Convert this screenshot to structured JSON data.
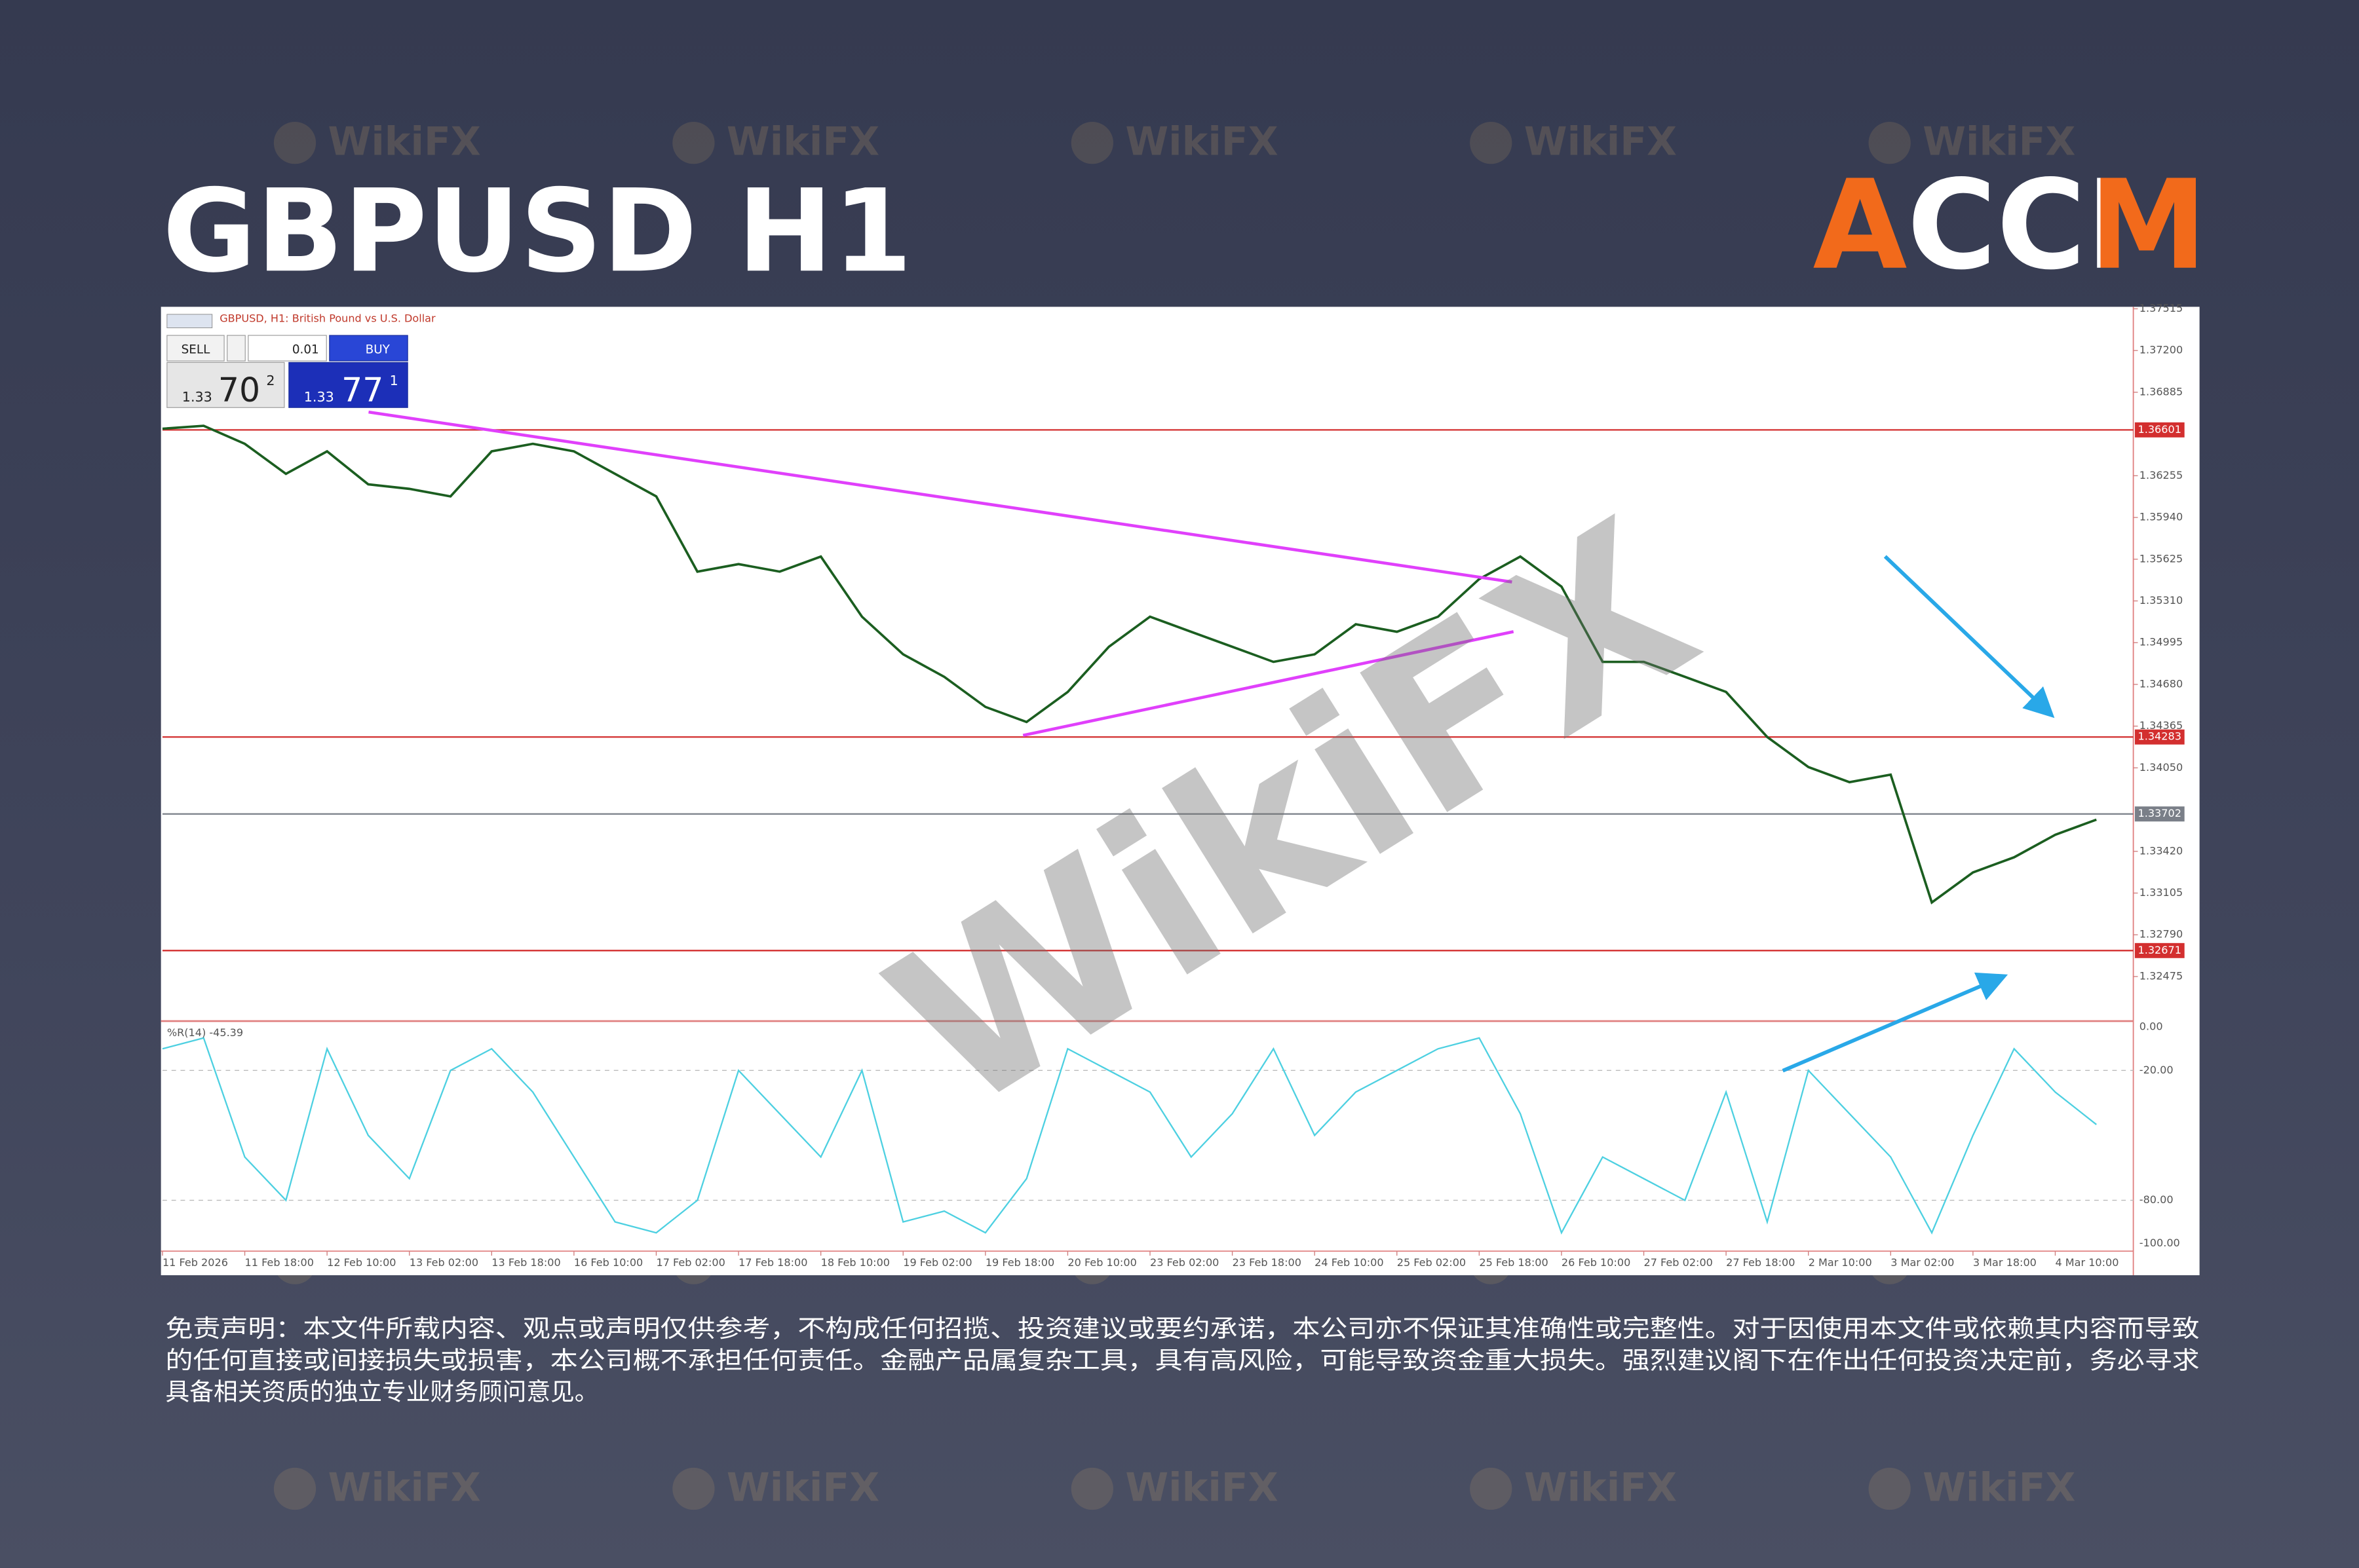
{
  "title": "GBPUSD H1",
  "logo": "ACCM",
  "watermark": "WikiFX",
  "chart_data": {
    "type": "line",
    "header": "GBPUSD, H1: British Pound vs U.S. Dollar",
    "trade_panel": {
      "sell": "SELL",
      "lot": "0.01",
      "buy": "BUY",
      "bid_big": "1.33",
      "bid_main": "70",
      "bid_small": "2",
      "ask_big": "1.33",
      "ask_main": "77",
      "ask_small": "1"
    },
    "time_labels": [
      "11 Feb 2026",
      "11 Feb 18:00",
      "12 Feb 10:00",
      "13 Feb 02:00",
      "13 Feb 18:00",
      "16 Feb 10:00",
      "17 Feb 02:00",
      "17 Feb 18:00",
      "18 Feb 10:00",
      "19 Feb 02:00",
      "19 Feb 18:00",
      "20 Feb 10:00",
      "23 Feb 02:00",
      "23 Feb 18:00",
      "24 Feb 10:00",
      "25 Feb 02:00",
      "25 Feb 18:00",
      "26 Feb 10:00",
      "27 Feb 02:00",
      "27 Feb 18:00",
      "2 Mar 10:00",
      "3 Mar 02:00",
      "3 Mar 18:00",
      "4 Mar 10:00"
    ],
    "ylim": [
      1.3215,
      1.3753
    ],
    "yticks": [
      1.37515,
      {
        "value": 1.372,
        "label": "1.37200"
      },
      1.36885,
      1.36255,
      {
        "value": 1.3594,
        "label": "1.35940"
      },
      1.35625,
      {
        "value": 1.3531,
        "label": "1.35310"
      },
      1.34995,
      {
        "value": 1.3468,
        "label": "1.34680"
      },
      1.34365,
      {
        "value": 1.3405,
        "label": "1.34050"
      },
      {
        "value": 1.3342,
        "label": "1.33420"
      },
      1.33105,
      {
        "value": 1.3279,
        "label": "1.32790"
      },
      1.32475
    ],
    "levels": [
      {
        "value": 1.36601,
        "color": "#d32f2f"
      },
      {
        "value": 1.34283,
        "color": "#d32f2f"
      },
      {
        "value": 1.33702,
        "color": "#7a7f88"
      },
      {
        "value": 1.32671,
        "color": "#d32f2f"
      }
    ],
    "series": [
      {
        "name": "GBPUSD",
        "color": "#1b5e20",
        "values": [
          1.3661,
          1.36632,
          1.36496,
          1.36269,
          1.36439,
          1.3619,
          1.36156,
          1.36099,
          1.36439,
          1.36496,
          1.36439,
          1.36269,
          1.36099,
          1.35531,
          1.35588,
          1.35531,
          1.35645,
          1.35191,
          1.34907,
          1.34737,
          1.3451,
          1.34396,
          1.34623,
          1.34964,
          1.35191,
          1.35077,
          1.34964,
          1.3485,
          1.34907,
          1.35134,
          1.35077,
          1.35191,
          1.35475,
          1.35645,
          1.35418,
          1.3485,
          1.3485,
          1.34737,
          1.34623,
          1.34283,
          1.34056,
          1.33942,
          1.33999,
          1.33034,
          1.33261,
          1.33375,
          1.33545,
          1.33659
        ]
      },
      {
        "name": "%R(14) -45.39",
        "color": "#4dd0e1",
        "axis": "y2",
        "values": [
          -10,
          -5,
          -60,
          -80,
          -10,
          -50,
          -70,
          -20,
          -10,
          -30,
          -60,
          -90,
          -95,
          -80,
          -20,
          -40,
          -60,
          -20,
          -90,
          -85,
          -95,
          -70,
          -10,
          -20,
          -30,
          -60,
          -40,
          -10,
          -50,
          -30,
          -20,
          -10,
          -5,
          -40,
          -95,
          -60,
          -70,
          -80,
          -30,
          -90,
          -20,
          -40,
          -60,
          -95,
          -50,
          -10,
          -30,
          -45
        ]
      }
    ],
    "y2lim": [
      -103.5,
      2.1
    ],
    "y2ticks": [
      {
        "value": 0,
        "label": "0.00"
      },
      {
        "value": -20,
        "label": "-20.00"
      },
      {
        "value": -80,
        "label": "-80.00"
      },
      {
        "value": -100,
        "label": "-100.00"
      }
    ]
  },
  "disclaimer": [
    "免责声明：本文件所载内容、观点或声明仅供参考，不构成任何招揽、投资建议或要约承诺，本公司亦不保证其准确性或完整性。对于因使用本文件或依赖其内容而导致",
    "的任何直接或间接损失或损害，本公司概不承担任何责任。金融产品属复杂工具，具有高风险，可能导致资金重大损失。强烈建议阁下在作出任何投资决定前，务必寻求",
    "具备相关资质的独立专业财务顾问意见。"
  ]
}
